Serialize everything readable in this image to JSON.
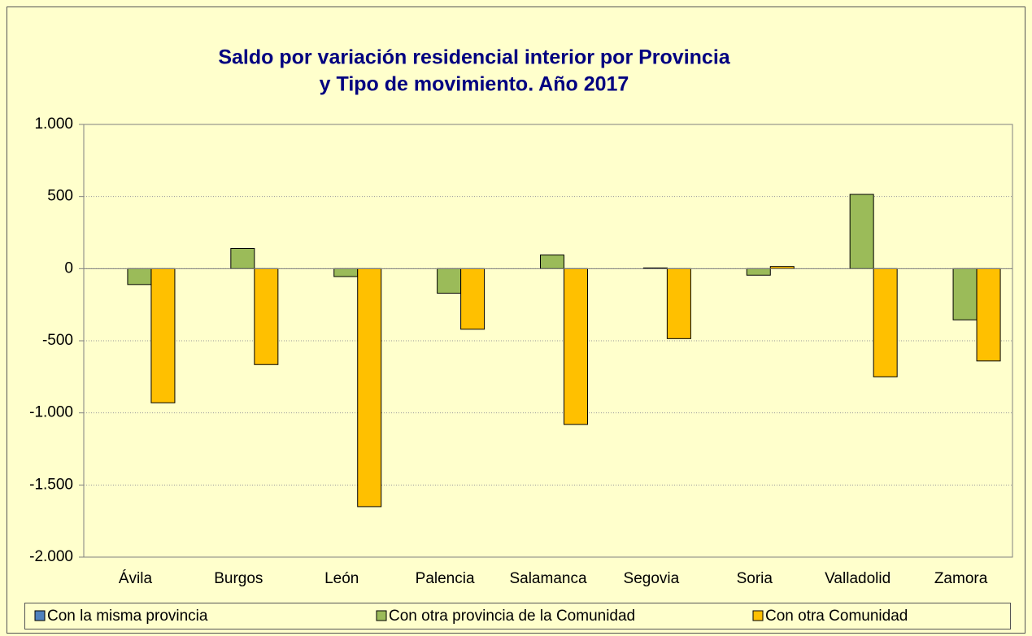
{
  "chart_data": {
    "type": "bar",
    "title": "Saldo por variación residencial interior por Provincia",
    "subtitle": "y Tipo de movimiento. Año 2017",
    "categories": [
      "Ávila",
      "Burgos",
      "León",
      "Palencia",
      "Salamanca",
      "Segovia",
      "Soria",
      "Valladolid",
      "Zamora"
    ],
    "series": [
      {
        "name": "Con la misma provincia",
        "color": "#4f81bd",
        "values": [
          0,
          0,
          0,
          0,
          0,
          0,
          0,
          0,
          0
        ]
      },
      {
        "name": "Con otra provincia de la Comunidad",
        "color": "#9bbb59",
        "values": [
          -110,
          140,
          -55,
          -170,
          95,
          5,
          -45,
          515,
          -355
        ]
      },
      {
        "name": "Con otra Comunidad",
        "color": "#ffc000",
        "values": [
          -930,
          -665,
          -1650,
          -420,
          -1080,
          -485,
          15,
          -750,
          -640
        ]
      }
    ],
    "ylim": [
      -2000,
      1000
    ],
    "yticks": [
      {
        "value": 1000,
        "label": "1.000"
      },
      500,
      0,
      -500,
      {
        "value": -1000,
        "label": "-1.000"
      },
      {
        "value": -1500,
        "label": "-1.500"
      },
      {
        "value": -2000,
        "label": "-2.000"
      }
    ],
    "grid": true,
    "legend": "bottom"
  }
}
